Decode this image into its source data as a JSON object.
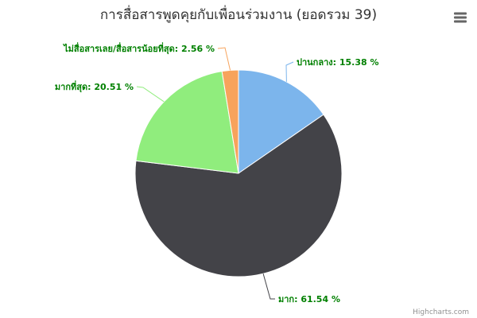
{
  "chart_data": {
    "type": "pie",
    "title": "การสื่อสารพูดคุยกับเพื่อนร่วมงาน (ยอดรวม 39)",
    "slices": [
      {
        "name": "ปานกลาง",
        "value": 15.38,
        "label": "ปานกลาง: 15.38 %",
        "color": "#7cb5ec"
      },
      {
        "name": "มาก",
        "value": 61.54,
        "label": "มาก: 61.54 %",
        "color": "#434348"
      },
      {
        "name": "มากที่สุด",
        "value": 20.51,
        "label": "มากที่สุด: 20.51 %",
        "color": "#90ed7d"
      },
      {
        "name": "ไม่สื่อสารเลย/สื่อสารน้อยที่สุด",
        "value": 2.56,
        "label": "ไม่สื่อสารเลย/สื่อสารน้อยที่สุด: 2.56 %",
        "color": "#f7a35c"
      }
    ],
    "legend": "none"
  },
  "credits": "Highcharts.com",
  "menu_icon": "hamburger-menu-icon"
}
